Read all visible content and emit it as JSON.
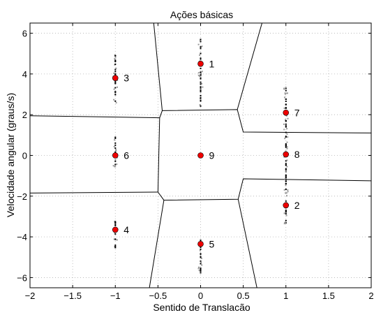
{
  "chart_data": {
    "type": "scatter",
    "title": "Ações básicas",
    "xlabel": "Sentido de Translacão",
    "ylabel": "Velocidade angular (graus/s)",
    "xlim": [
      -2,
      2
    ],
    "ylim": [
      -6.5,
      6.5
    ],
    "x_ticks": [
      -2,
      -1.5,
      -1,
      -0.5,
      0,
      0.5,
      1,
      1.5,
      2
    ],
    "x_tick_labels": [
      "−2",
      "−1.5",
      "−1",
      "−0.5",
      "0",
      "0.5",
      "1",
      "1.5",
      "2"
    ],
    "y_ticks": [
      -6,
      -4,
      -2,
      0,
      2,
      4,
      6
    ],
    "y_tick_labels": [
      "−6",
      "−4",
      "−2",
      "0",
      "2",
      "4",
      "6"
    ],
    "grid": "dotted",
    "centroids": [
      {
        "label": "1",
        "x": 0,
        "y": 4.5
      },
      {
        "label": "2",
        "x": 1,
        "y": -2.45
      },
      {
        "label": "3",
        "x": -1,
        "y": 3.8
      },
      {
        "label": "4",
        "x": -1,
        "y": -3.65
      },
      {
        "label": "5",
        "x": 0,
        "y": -4.35
      },
      {
        "label": "6",
        "x": -1,
        "y": 0
      },
      {
        "label": "7",
        "x": 1,
        "y": 2.1
      },
      {
        "label": "8",
        "x": 1,
        "y": 0.05
      },
      {
        "label": "9",
        "x": 0,
        "y": 0
      }
    ],
    "boundaries": [
      [
        [
          -2,
          1.95
        ],
        [
          -0.48,
          1.85
        ],
        [
          -0.45,
          2.2
        ],
        [
          0.43,
          2.25
        ],
        [
          0.5,
          1.15
        ],
        [
          2,
          1.1
        ]
      ],
      [
        [
          -0.45,
          2.2
        ],
        [
          -0.55,
          6.5
        ]
      ],
      [
        [
          0.43,
          2.25
        ],
        [
          0.72,
          6.5
        ]
      ],
      [
        [
          -0.48,
          1.85
        ],
        [
          -0.5,
          -1.8
        ],
        [
          -0.43,
          -2.2
        ],
        [
          0.44,
          -2.15
        ],
        [
          0.5,
          -1.15
        ],
        [
          2,
          -1.25
        ]
      ],
      [
        [
          -2,
          -1.85
        ],
        [
          -0.5,
          -1.8
        ]
      ],
      [
        [
          -0.43,
          -2.2
        ],
        [
          -0.6,
          -6.5
        ]
      ],
      [
        [
          0.44,
          -2.15
        ],
        [
          0.66,
          -6.5
        ]
      ]
    ],
    "samples": {
      "black_color": "#000000",
      "gray_color": "#999999",
      "clusters": [
        {
          "x": 0,
          "y_min": 2.4,
          "y_max": 5.8
        },
        {
          "x": 0,
          "y_min": -5.8,
          "y_max": -4.0
        },
        {
          "x": -1,
          "y_min": 2.5,
          "y_max": 5.2
        },
        {
          "x": -1,
          "y_min": -4.6,
          "y_max": -3.2
        },
        {
          "x": -1,
          "y_min": -0.7,
          "y_max": 0.9
        },
        {
          "x": 1,
          "y_min": -3.4,
          "y_max": 3.4
        }
      ]
    },
    "centroid_color": "#ee0000"
  }
}
